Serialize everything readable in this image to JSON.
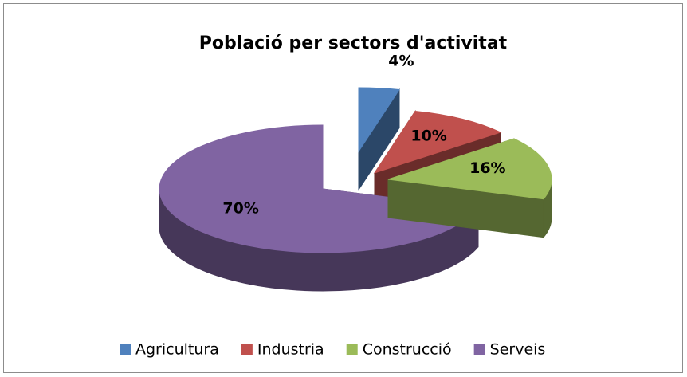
{
  "chart_data": {
    "type": "pie3d",
    "title": "Població per sectors d'activitat",
    "categories": [
      "Agricultura",
      "Industria",
      "Construcció",
      "Serveis"
    ],
    "values": [
      4,
      10,
      16,
      70
    ],
    "value_labels": [
      "4%",
      "10%",
      "16%",
      "70%"
    ],
    "colors": [
      "#4f81bd",
      "#c0504d",
      "#9bbb59",
      "#8064a2"
    ],
    "legend": "bottom"
  }
}
